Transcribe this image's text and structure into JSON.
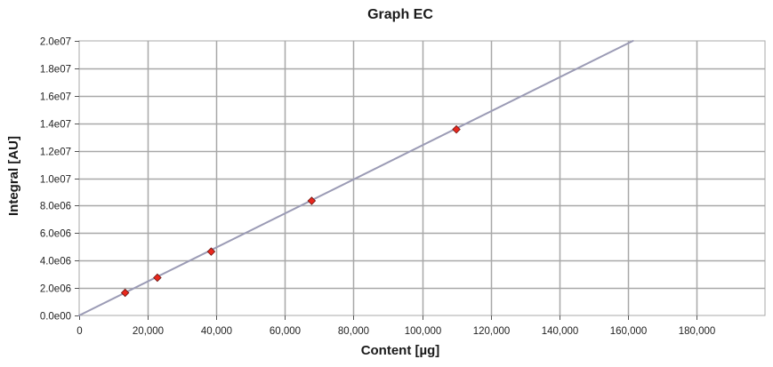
{
  "chart_data": {
    "type": "scatter",
    "title": "Graph EC",
    "xlabel": "Content [µg]",
    "ylabel": "Integral [AU]",
    "xlim": [
      0,
      200000
    ],
    "ylim": [
      0,
      20000000
    ],
    "x_ticks": [
      0,
      20000,
      40000,
      60000,
      80000,
      100000,
      120000,
      140000,
      160000,
      180000
    ],
    "x_tick_labels": [
      "0",
      "20,000",
      "40,000",
      "60,000",
      "80,000",
      "100,000",
      "120,000",
      "140,000",
      "160,000",
      "180,000"
    ],
    "y_ticks": [
      0,
      2000000,
      4000000,
      6000000,
      8000000,
      10000000,
      12000000,
      14000000,
      16000000,
      18000000,
      20000000
    ],
    "y_tick_labels": [
      "0.0e00",
      "2.0e06",
      "4.0e06",
      "6.0e06",
      "8.0e06",
      "1.0e07",
      "1.2e07",
      "1.4e07",
      "1.6e07",
      "1.8e07",
      "2.0e07"
    ],
    "grid": true,
    "series": [
      {
        "marker": "diamond",
        "color": "#e8281e",
        "x": [
          13400,
          22800,
          38500,
          67800,
          110000
        ],
        "y": [
          1650000,
          2750000,
          4650000,
          8350000,
          13550000
        ]
      }
    ],
    "fit_line": {
      "color": "#9b9bb5",
      "x": [
        0,
        161500
      ],
      "y": [
        0,
        20000000
      ]
    }
  }
}
